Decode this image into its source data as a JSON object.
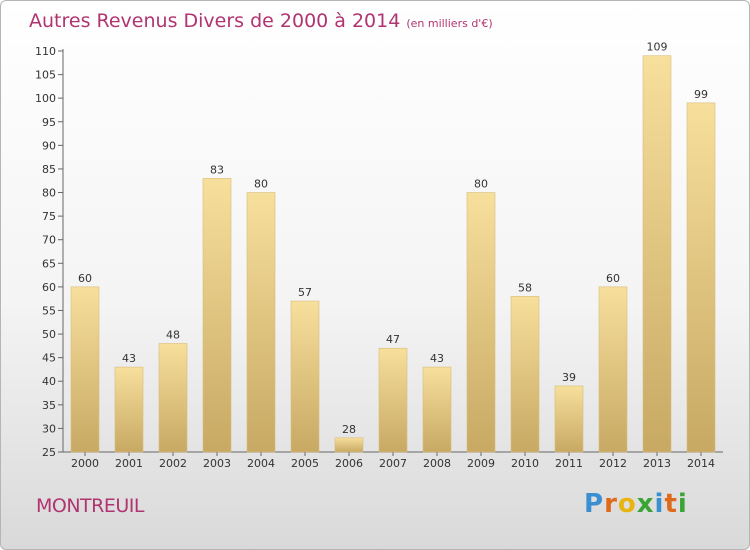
{
  "chart_data": {
    "type": "bar",
    "title": "Autres Revenus Divers de 2000 à 2014",
    "unit": "(en milliers d'€)",
    "categories": [
      "2000",
      "2001",
      "2002",
      "2003",
      "2004",
      "2005",
      "2006",
      "2007",
      "2008",
      "2009",
      "2010",
      "2011",
      "2012",
      "2013",
      "2014"
    ],
    "values": [
      60,
      43,
      48,
      83,
      80,
      57,
      28,
      47,
      43,
      80,
      58,
      39,
      60,
      109,
      99
    ],
    "ylim": [
      25,
      110
    ],
    "ytick_step": 5,
    "xlabel": "",
    "ylabel": "",
    "grid": false,
    "legend": "none"
  },
  "city": "MONTREUIL",
  "brand": {
    "letters": [
      "P",
      "r",
      "o",
      "x",
      "i",
      "t",
      "i"
    ],
    "colors": [
      "#3a8fd0",
      "#e06a1b",
      "#e8b40f",
      "#3aa535",
      "#3a8fd0",
      "#e06a1b",
      "#3aa535"
    ]
  },
  "colors": {
    "title": "#b03470",
    "bar_light": "#f7df9c",
    "bar_dark": "#c7a963"
  }
}
